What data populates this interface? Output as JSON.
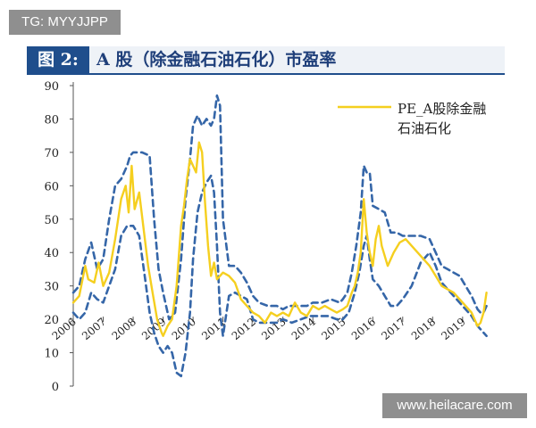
{
  "watermark_top": "TG: MYYJJPP",
  "watermark_bottom": "www.heilacare.com",
  "figure": {
    "number": "图 2:",
    "title": "A 股（除金融石油石化）市盈率"
  },
  "colors": {
    "pe_line": "#f5cf1f",
    "band_line": "#3566a8",
    "header_blue": "#1f4e8c"
  },
  "chart_data": {
    "type": "line",
    "title": "",
    "xlabel": "",
    "ylabel": "",
    "ylim": [
      0,
      90
    ],
    "yticks": [
      0,
      10,
      20,
      30,
      40,
      50,
      60,
      70,
      80,
      90
    ],
    "xlim": [
      2006.0,
      2019.9
    ],
    "xticks": [
      "2006",
      "2007",
      "2008",
      "2009",
      "2010",
      "2011",
      "2012",
      "2013",
      "2014",
      "2015",
      "2016",
      "2017",
      "2018",
      "2019"
    ],
    "legend": {
      "placement": "top-right",
      "label": "PE_A股除金融\n石油石化"
    },
    "grid": false,
    "series": [
      {
        "name": "PE_A股除金融石油石化",
        "style": "solid",
        "color": "#f5cf1f",
        "x": [
          2006.0,
          2006.2,
          2006.4,
          2006.5,
          2006.7,
          2006.85,
          2007.0,
          2007.2,
          2007.4,
          2007.6,
          2007.75,
          2007.85,
          2007.95,
          2008.05,
          2008.2,
          2008.35,
          2008.5,
          2008.65,
          2008.8,
          2008.95,
          2009.0,
          2009.15,
          2009.3,
          2009.45,
          2009.6,
          2009.7,
          2009.8,
          2009.9,
          2010.0,
          2010.1,
          2010.2,
          2010.3,
          2010.4,
          2010.5,
          2010.6,
          2010.7,
          2010.8,
          2010.9,
          2011.0,
          2011.2,
          2011.4,
          2011.6,
          2011.8,
          2012.0,
          2012.2,
          2012.4,
          2012.6,
          2012.8,
          2013.0,
          2013.2,
          2013.4,
          2013.6,
          2013.8,
          2014.0,
          2014.2,
          2014.4,
          2014.6,
          2014.8,
          2015.0,
          2015.15,
          2015.3,
          2015.4,
          2015.5,
          2015.6,
          2015.7,
          2015.8,
          2015.9,
          2016.0,
          2016.1,
          2016.2,
          2016.3,
          2016.5,
          2016.7,
          2016.9,
          2017.1,
          2017.3,
          2017.5,
          2017.7,
          2017.9,
          2018.1,
          2018.3,
          2018.5,
          2018.7,
          2018.9,
          2019.1,
          2019.3,
          2019.4,
          2019.5,
          2019.6,
          2019.7,
          2019.8
        ],
        "y": [
          25,
          27,
          36,
          32,
          31,
          37,
          30,
          34,
          44,
          56,
          60,
          52,
          66,
          53,
          58,
          47,
          36,
          28,
          20,
          16,
          15,
          18,
          20,
          30,
          48,
          54,
          62,
          68,
          66,
          64,
          73,
          70,
          55,
          42,
          33,
          37,
          32,
          33,
          34,
          33,
          31,
          26,
          24,
          22,
          21,
          19,
          22,
          21,
          22,
          21,
          25,
          22,
          21,
          24,
          23,
          24,
          23,
          22,
          23,
          24,
          28,
          30,
          34,
          40,
          56,
          46,
          40,
          36,
          44,
          48,
          42,
          36,
          40,
          43,
          44,
          42,
          40,
          38,
          36,
          33,
          30,
          29,
          28,
          26,
          24,
          22,
          20,
          18,
          19,
          22,
          28
        ]
      },
      {
        "name": "",
        "style": "dashed",
        "color": "#3566a8",
        "x": [
          2006.0,
          2006.2,
          2006.4,
          2006.6,
          2006.8,
          2007.0,
          2007.2,
          2007.4,
          2007.6,
          2007.8,
          2007.9,
          2008.0,
          2008.3,
          2008.55,
          2008.7,
          2008.85,
          2009.0,
          2009.2,
          2009.4,
          2009.6,
          2009.75,
          2009.9,
          2010.0,
          2010.15,
          2010.3,
          2010.45,
          2010.6,
          2010.7,
          2010.8,
          2010.9,
          2011.0,
          2011.2,
          2011.4,
          2011.6,
          2011.8,
          2012.0,
          2012.2,
          2012.5,
          2012.8,
          2013.0,
          2013.2,
          2013.5,
          2013.8,
          2014.0,
          2014.3,
          2014.6,
          2014.9,
          2015.0,
          2015.15,
          2015.3,
          2015.45,
          2015.6,
          2015.7,
          2015.8,
          2015.9,
          2016.0,
          2016.2,
          2016.4,
          2016.6,
          2016.8,
          2017.0,
          2017.3,
          2017.6,
          2017.9,
          2018.1,
          2018.3,
          2018.5,
          2018.7,
          2018.9,
          2019.1,
          2019.3,
          2019.5,
          2019.6,
          2019.7,
          2019.8
        ],
        "y": [
          28,
          30,
          38,
          43,
          35,
          38,
          50,
          60,
          62,
          66,
          69,
          70,
          70,
          69,
          50,
          35,
          28,
          20,
          22,
          38,
          56,
          68,
          78,
          81,
          78,
          80,
          78,
          80,
          87,
          84,
          50,
          36,
          36,
          34,
          31,
          27,
          25,
          24,
          24,
          23,
          24,
          24,
          24,
          25,
          25,
          26,
          25,
          26,
          28,
          34,
          42,
          52,
          66,
          64,
          64,
          54,
          53,
          52,
          46,
          46,
          45,
          45,
          45,
          44,
          40,
          36,
          35,
          34,
          33,
          30,
          27,
          23,
          22,
          22,
          24
        ]
      },
      {
        "name": "",
        "style": "dashed",
        "color": "#3566a8",
        "x": [
          2006.0,
          2006.2,
          2006.4,
          2006.6,
          2006.8,
          2007.0,
          2007.2,
          2007.4,
          2007.6,
          2007.8,
          2008.0,
          2008.2,
          2008.4,
          2008.55,
          2008.7,
          2008.85,
          2009.0,
          2009.15,
          2009.3,
          2009.45,
          2009.6,
          2009.75,
          2009.9,
          2010.0,
          2010.15,
          2010.3,
          2010.45,
          2010.6,
          2010.7,
          2010.8,
          2010.9,
          2011.0,
          2011.2,
          2011.4,
          2011.6,
          2011.8,
          2012.0,
          2012.2,
          2012.5,
          2012.8,
          2013.0,
          2013.3,
          2013.6,
          2013.9,
          2014.2,
          2014.5,
          2014.8,
          2015.0,
          2015.2,
          2015.4,
          2015.55,
          2015.7,
          2015.8,
          2015.9,
          2016.0,
          2016.2,
          2016.4,
          2016.6,
          2016.8,
          2017.0,
          2017.3,
          2017.6,
          2017.9,
          2018.1,
          2018.3,
          2018.5,
          2018.7,
          2018.9,
          2019.1,
          2019.3,
          2019.5,
          2019.6,
          2019.7,
          2019.8
        ],
        "y": [
          22,
          20,
          22,
          28,
          26,
          25,
          30,
          35,
          45,
          48,
          48,
          45,
          32,
          22,
          16,
          12,
          10,
          12,
          10,
          4,
          3,
          10,
          22,
          38,
          52,
          58,
          61,
          63,
          58,
          42,
          22,
          15,
          27,
          28,
          27,
          26,
          20,
          19,
          19,
          19,
          20,
          19,
          20,
          21,
          21,
          21,
          20,
          20,
          22,
          28,
          34,
          42,
          45,
          38,
          32,
          30,
          27,
          24,
          24,
          26,
          30,
          37,
          40,
          36,
          31,
          29,
          27,
          25,
          23,
          21,
          18,
          17,
          16,
          15
        ]
      }
    ]
  }
}
